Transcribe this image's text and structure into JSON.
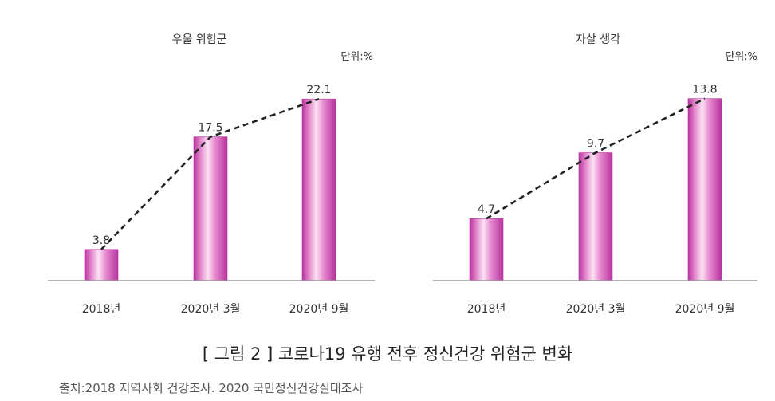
{
  "figure": {
    "caption": "[ 그림 2 ] 코로나19 유행 전후 정신건강 위험군 변화",
    "source": "출처:2018 지역사회 건강조사. 2020 국민정신건강실태조사"
  },
  "colors": {
    "bar_edge": "#b8329e",
    "bar_highlight": "#fbe3f4",
    "bar_mid": "#e07dc8",
    "axis": "#9a9a9a",
    "trend_line": "#222222",
    "text": "#333333"
  },
  "chart_data": [
    {
      "type": "bar",
      "title": "우울 위험군",
      "unit_label": "단위:%",
      "categories": [
        "2018년",
        "2020년 3월",
        "2020년 9월"
      ],
      "values": [
        3.8,
        17.5,
        22.1
      ],
      "value_labels": [
        "3.8",
        "17.5",
        "22.1"
      ],
      "ylim": [
        0,
        26
      ],
      "trend_line": "dashed",
      "grid": false
    },
    {
      "type": "bar",
      "title": "자살 생각",
      "unit_label": "단위:%",
      "categories": [
        "2018년",
        "2020년 3월",
        "2020년 9월"
      ],
      "values": [
        4.7,
        9.7,
        13.8
      ],
      "value_labels": [
        "4.7",
        "9.7",
        "13.8"
      ],
      "ylim": [
        0,
        16.2
      ],
      "trend_line": "dashed",
      "grid": false
    }
  ]
}
